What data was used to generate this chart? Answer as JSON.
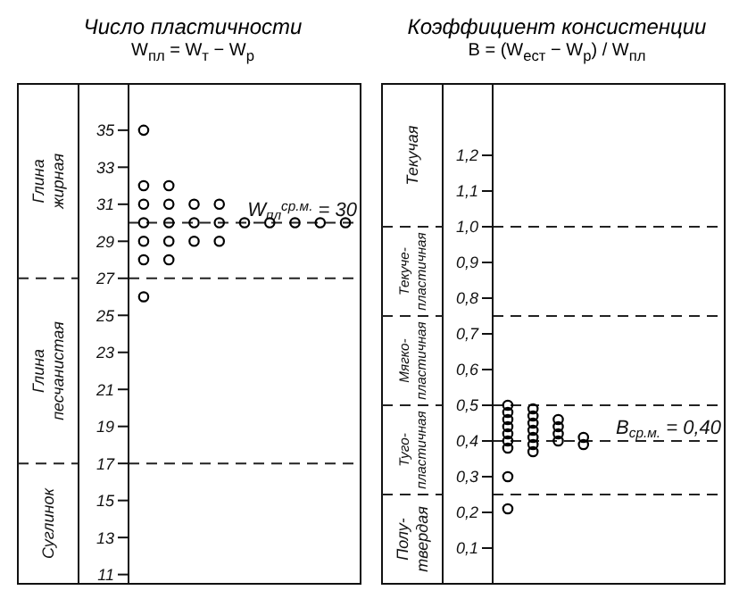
{
  "chart_data": [
    {
      "type": "scatter",
      "title": "Число пластичности",
      "subtitle": "W$_{пл}$ = W$_{т}$ − W$_{р}$",
      "categories": [
        null,
        null,
        null,
        null,
        null,
        null,
        null,
        null,
        null
      ],
      "series": [
        {
          "color": "#000000",
          "values": [
            35,
            32,
            31,
            31,
            30,
            30,
            30,
            30,
            30
          ]
        },
        {
          "color": "#000000",
          "values": [
            32,
            31,
            30,
            30,
            null,
            null,
            null,
            null,
            null
          ]
        },
        {
          "color": "#000000",
          "values": [
            31,
            30,
            29,
            29,
            null,
            null,
            null,
            null,
            null
          ]
        },
        {
          "color": "#000000",
          "values": [
            30,
            29,
            null,
            null,
            null,
            null,
            null,
            null,
            null
          ]
        },
        {
          "color": "#000000",
          "values": [
            29,
            28,
            null,
            null,
            null,
            null,
            null,
            null,
            null
          ]
        },
        {
          "color": "#000000",
          "values": [
            28,
            null,
            null,
            null,
            null,
            null,
            null,
            null,
            null
          ]
        },
        {
          "color": "#000000",
          "values": [
            26,
            null,
            null,
            null,
            null,
            null,
            null,
            null,
            null
          ]
        }
      ],
      "ylim": [
        10.5,
        37.5
      ],
      "yticks": [
        11,
        13,
        15,
        17,
        19,
        21,
        23,
        25,
        27,
        29,
        31,
        33,
        35
      ],
      "tick_labels": "y",
      "marker": "circle",
      "legend": false,
      "grid": false,
      "ref_lines": [
        {
          "axis": "y",
          "value": 30,
          "label": "W$_{пл}$$^{ср.м.}$ = 30",
          "line_style": "dashed"
        },
        {
          "axis": "y",
          "value": 27,
          "line_style": "dashed"
        },
        {
          "axis": "y",
          "value": 17,
          "line_style": "dashed"
        }
      ],
      "annotations": [
        "Глина жирная",
        "Глина песчанистая",
        "Суглинок"
      ]
    },
    {
      "type": "scatter",
      "title": "Коэффициент консистенции",
      "subtitle": "B = (W$_{ест}$ − W$_{р}$) / W$_{пл}$",
      "categories": [
        null,
        null,
        null,
        null,
        null,
        null,
        null,
        null,
        null
      ],
      "series": [
        {
          "color": "#000000",
          "values": [
            0.5,
            0.49,
            0.46,
            0.41,
            null,
            null,
            null,
            null,
            null
          ]
        },
        {
          "color": "#000000",
          "values": [
            0.48,
            0.47,
            0.44,
            0.39,
            null,
            null,
            null,
            null,
            null
          ]
        },
        {
          "color": "#000000",
          "values": [
            0.46,
            0.45,
            0.42,
            null,
            null,
            null,
            null,
            null,
            null
          ]
        },
        {
          "color": "#000000",
          "values": [
            0.44,
            0.43,
            0.4,
            null,
            null,
            null,
            null,
            null,
            null
          ]
        },
        {
          "color": "#000000",
          "values": [
            0.42,
            0.41,
            null,
            null,
            null,
            null,
            null,
            null,
            null
          ]
        },
        {
          "color": "#000000",
          "values": [
            0.4,
            0.39,
            null,
            null,
            null,
            null,
            null,
            null,
            null
          ]
        },
        {
          "color": "#000000",
          "values": [
            0.38,
            0.37,
            null,
            null,
            null,
            null,
            null,
            null,
            null
          ]
        },
        {
          "color": "#000000",
          "values": [
            0.3,
            null,
            null,
            null,
            null,
            null,
            null,
            null,
            null
          ]
        },
        {
          "color": "#000000",
          "values": [
            0.21,
            null,
            null,
            null,
            null,
            null,
            null,
            null,
            null
          ]
        }
      ],
      "ylim": [
        0,
        1.4
      ],
      "yticks": [
        {
          "value": 0.1,
          "label": "0,1"
        },
        {
          "value": 0.2,
          "label": "0,2"
        },
        {
          "value": 0.3,
          "label": "0,3"
        },
        {
          "value": 0.4,
          "label": "0,4"
        },
        {
          "value": 0.5,
          "label": "0,5"
        },
        {
          "value": 0.6,
          "label": "0,6"
        },
        {
          "value": 0.7,
          "label": "0,7"
        },
        {
          "value": 0.8,
          "label": "0,8"
        },
        {
          "value": 0.9,
          "label": "0,9"
        },
        {
          "value": 1.0,
          "label": "1,0"
        },
        {
          "value": 1.1,
          "label": "1,1"
        },
        {
          "value": 1.2,
          "label": "1,2"
        }
      ],
      "tick_labels": "y",
      "marker": "circle",
      "legend": false,
      "grid": false,
      "ref_lines": [
        {
          "axis": "y",
          "value": 0.4,
          "label": "B$_{ср.м.}$ = 0,40",
          "line_style": "dashed"
        },
        {
          "axis": "y",
          "value": 1.0,
          "line_style": "dashed"
        },
        {
          "axis": "y",
          "value": 0.75,
          "line_style": "dashed"
        },
        {
          "axis": "y",
          "value": 0.5,
          "line_style": "dashed"
        },
        {
          "axis": "y",
          "value": 0.25,
          "line_style": "dashed"
        }
      ],
      "annotations": [
        "Текучая",
        "Текуче-пластичная",
        "Мягко-пластичная",
        "Туго-пластичная",
        "Полу-твердая"
      ]
    }
  ]
}
